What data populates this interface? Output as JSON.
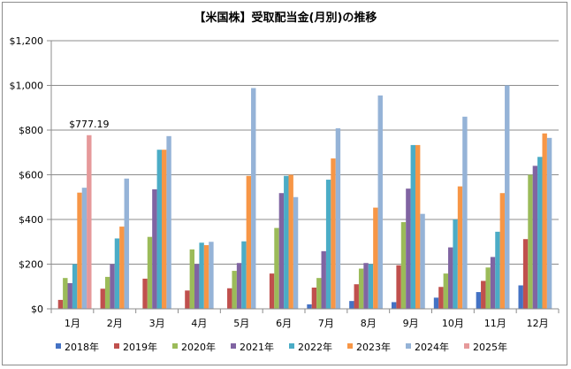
{
  "chart_data": {
    "type": "bar",
    "title": "【米国株】受取配当金(月別)の推移",
    "xlabel": "",
    "ylabel": "",
    "ylim": [
      0,
      1200
    ],
    "yticks": [
      "$0",
      "$200",
      "$400",
      "$600",
      "$800",
      "$1,000",
      "$1,200"
    ],
    "ytick_values": [
      0,
      200,
      400,
      600,
      800,
      1000,
      1200
    ],
    "grid": true,
    "legend_position": "bottom",
    "categories": [
      "1月",
      "2月",
      "3月",
      "4月",
      "5月",
      "6月",
      "7月",
      "8月",
      "9月",
      "10月",
      "11月",
      "12月"
    ],
    "series": [
      {
        "name": "2018年",
        "color": "#4472C4",
        "values": [
          0,
          0,
          0,
          0,
          0,
          0,
          20,
          35,
          30,
          50,
          75,
          105
        ]
      },
      {
        "name": "2019年",
        "color": "#C0504D",
        "values": [
          40,
          90,
          135,
          82,
          92,
          158,
          95,
          110,
          195,
          98,
          125,
          312
        ]
      },
      {
        "name": "2020年",
        "color": "#9BBB59",
        "values": [
          138,
          143,
          322,
          266,
          170,
          362,
          138,
          180,
          388,
          158,
          185,
          600
        ]
      },
      {
        "name": "2021年",
        "color": "#8064A2",
        "values": [
          115,
          200,
          535,
          200,
          205,
          518,
          258,
          205,
          538,
          275,
          232,
          640
        ]
      },
      {
        "name": "2022年",
        "color": "#4BACC6",
        "values": [
          200,
          315,
          712,
          296,
          302,
          595,
          578,
          200,
          733,
          400,
          345,
          680
        ]
      },
      {
        "name": "2023年",
        "color": "#F79646",
        "values": [
          520,
          368,
          712,
          285,
          595,
          600,
          673,
          453,
          733,
          548,
          518,
          785
        ]
      },
      {
        "name": "2024年",
        "color": "#95B3D7",
        "values": [
          542,
          583,
          773,
          300,
          988,
          500,
          808,
          955,
          425,
          860,
          1000,
          765
        ]
      },
      {
        "name": "2025年",
        "color": "#E6999A",
        "values": [
          777.19,
          null,
          null,
          null,
          null,
          null,
          null,
          null,
          null,
          null,
          null,
          null
        ]
      }
    ],
    "annotations": [
      {
        "text": "$777.19",
        "category": "1月",
        "series": "2025年",
        "value": 777.19
      }
    ]
  }
}
